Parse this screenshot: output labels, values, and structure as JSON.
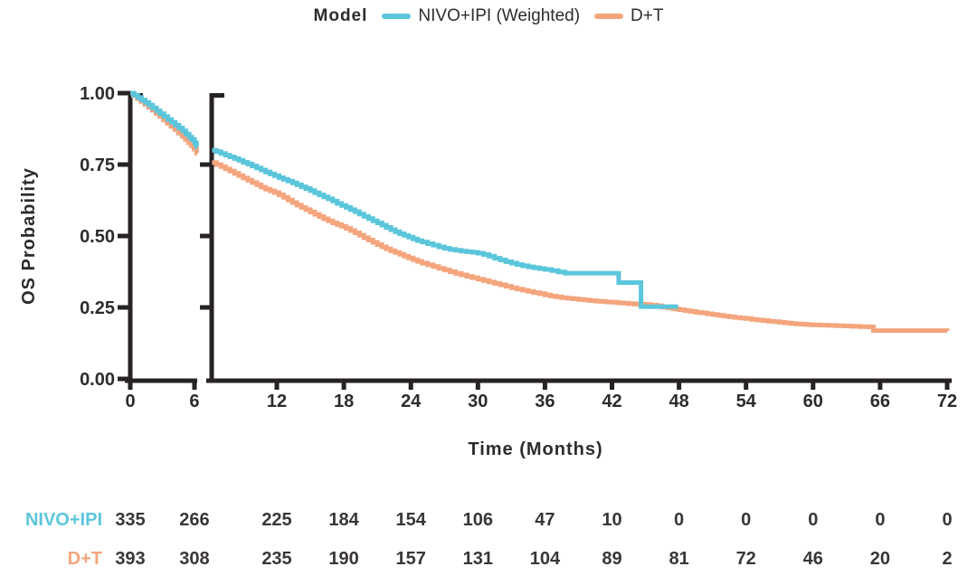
{
  "legend": {
    "title": "Model",
    "items": [
      {
        "label": "NIVO+IPI (Weighted)",
        "color": "#5bc6db"
      },
      {
        "label": "D+T",
        "color": "#f4a57d"
      }
    ]
  },
  "axes": {
    "y_title": "OS Probability",
    "x_title": "Time (Months)",
    "y_ticks": [
      {
        "label": "1.00",
        "value": 1.0
      },
      {
        "label": "0.75",
        "value": 0.75
      },
      {
        "label": "0.50",
        "value": 0.5
      },
      {
        "label": "0.25",
        "value": 0.25
      },
      {
        "label": "0.00",
        "value": 0.0
      }
    ],
    "y_break_ticks": [
      0.75,
      0.5,
      0.25
    ],
    "x_ticks_panel1": [
      {
        "label": "0",
        "value": 0
      },
      {
        "label": "6",
        "value": 6
      }
    ],
    "x_ticks_panel2": [
      {
        "label": "12",
        "value": 12
      },
      {
        "label": "18",
        "value": 18
      },
      {
        "label": "24",
        "value": 24
      },
      {
        "label": "30",
        "value": 30
      },
      {
        "label": "36",
        "value": 36
      },
      {
        "label": "42",
        "value": 42
      },
      {
        "label": "48",
        "value": 48
      },
      {
        "label": "54",
        "value": 54
      },
      {
        "label": "60",
        "value": 60
      },
      {
        "label": "66",
        "value": 66
      },
      {
        "label": "72",
        "value": 72
      }
    ]
  },
  "chart_data": {
    "type": "line",
    "subtype": "kaplan-meier-step",
    "title": "",
    "xlabel": "Time (Months)",
    "ylabel": "OS Probability",
    "xlim": [
      0,
      72
    ],
    "ylim": [
      0.0,
      1.0
    ],
    "grid": false,
    "legend_position": "top",
    "x_axis_break": {
      "panel1_domain": [
        0,
        6.25
      ],
      "panel2_domain": [
        6.2,
        72
      ]
    },
    "series": [
      {
        "name": "D+T",
        "color": "#f4a57d",
        "end_month": 72,
        "panel1": [
          [
            0,
            1.0
          ],
          [
            0.3,
            0.991
          ],
          [
            0.65,
            0.981
          ],
          [
            1.0,
            0.971
          ],
          [
            1.35,
            0.961
          ],
          [
            1.7,
            0.951
          ],
          [
            2.05,
            0.94
          ],
          [
            2.4,
            0.929
          ],
          [
            2.75,
            0.918
          ],
          [
            3.1,
            0.906
          ],
          [
            3.45,
            0.895
          ],
          [
            3.8,
            0.884
          ],
          [
            4.15,
            0.872
          ],
          [
            4.5,
            0.86
          ],
          [
            4.85,
            0.848
          ],
          [
            5.15,
            0.838
          ],
          [
            5.45,
            0.826
          ],
          [
            5.7,
            0.816
          ],
          [
            5.95,
            0.804
          ],
          [
            6.2,
            0.79
          ]
        ],
        "panel2": [
          [
            6.2,
            0.757
          ],
          [
            6.6,
            0.75
          ],
          [
            7,
            0.743
          ],
          [
            7.4,
            0.735
          ],
          [
            7.8,
            0.727
          ],
          [
            8.2,
            0.719
          ],
          [
            8.6,
            0.711
          ],
          [
            9,
            0.703
          ],
          [
            9.4,
            0.695
          ],
          [
            9.8,
            0.687
          ],
          [
            10.2,
            0.679
          ],
          [
            10.6,
            0.671
          ],
          [
            11,
            0.664
          ],
          [
            11.4,
            0.658
          ],
          [
            11.8,
            0.652
          ],
          [
            12.2,
            0.644
          ],
          [
            12.6,
            0.635
          ],
          [
            13,
            0.626
          ],
          [
            13.4,
            0.617
          ],
          [
            13.8,
            0.608
          ],
          [
            14.2,
            0.6
          ],
          [
            14.6,
            0.592
          ],
          [
            15,
            0.584
          ],
          [
            15.4,
            0.576
          ],
          [
            15.8,
            0.568
          ],
          [
            16.2,
            0.56
          ],
          [
            16.6,
            0.553
          ],
          [
            17,
            0.546
          ],
          [
            17.4,
            0.54
          ],
          [
            17.8,
            0.534
          ],
          [
            18.2,
            0.527
          ],
          [
            18.6,
            0.519
          ],
          [
            19,
            0.511
          ],
          [
            19.4,
            0.503
          ],
          [
            19.8,
            0.494
          ],
          [
            20.2,
            0.486
          ],
          [
            20.6,
            0.478
          ],
          [
            21,
            0.47
          ],
          [
            21.4,
            0.462
          ],
          [
            21.8,
            0.455
          ],
          [
            22.2,
            0.448
          ],
          [
            22.6,
            0.442
          ],
          [
            23,
            0.436
          ],
          [
            23.4,
            0.429
          ],
          [
            23.8,
            0.423
          ],
          [
            24.2,
            0.417
          ],
          [
            24.6,
            0.411
          ],
          [
            25,
            0.405
          ],
          [
            25.5,
            0.399
          ],
          [
            26,
            0.393
          ],
          [
            26.5,
            0.387
          ],
          [
            27,
            0.381
          ],
          [
            27.5,
            0.375
          ],
          [
            28,
            0.369
          ],
          [
            28.5,
            0.364
          ],
          [
            29,
            0.359
          ],
          [
            29.5,
            0.354
          ],
          [
            30,
            0.349
          ],
          [
            30.5,
            0.344
          ],
          [
            31,
            0.339
          ],
          [
            31.5,
            0.334
          ],
          [
            32,
            0.329
          ],
          [
            32.5,
            0.324
          ],
          [
            33,
            0.319
          ],
          [
            33.5,
            0.314
          ],
          [
            34,
            0.31
          ],
          [
            34.5,
            0.306
          ],
          [
            35,
            0.302
          ],
          [
            35.5,
            0.298
          ],
          [
            36,
            0.294
          ],
          [
            36.5,
            0.29
          ],
          [
            37,
            0.287
          ],
          [
            37.5,
            0.284
          ],
          [
            38,
            0.282
          ],
          [
            38.5,
            0.28
          ],
          [
            39,
            0.278
          ],
          [
            39.5,
            0.276
          ],
          [
            40,
            0.274
          ],
          [
            40.5,
            0.272
          ],
          [
            41,
            0.271
          ],
          [
            41.5,
            0.269
          ],
          [
            42,
            0.268
          ],
          [
            42.5,
            0.266
          ],
          [
            43,
            0.265
          ],
          [
            43.5,
            0.263
          ],
          [
            44,
            0.262
          ],
          [
            44.5,
            0.261
          ],
          [
            45,
            0.26
          ],
          [
            45.5,
            0.258
          ],
          [
            46,
            0.256
          ],
          [
            46.5,
            0.251
          ],
          [
            47,
            0.248
          ],
          [
            47.5,
            0.245
          ],
          [
            48,
            0.242
          ],
          [
            48.5,
            0.239
          ],
          [
            49,
            0.236
          ],
          [
            49.5,
            0.233
          ],
          [
            50,
            0.231
          ],
          [
            50.5,
            0.228
          ],
          [
            51,
            0.225
          ],
          [
            51.5,
            0.222
          ],
          [
            52,
            0.22
          ],
          [
            52.5,
            0.217
          ],
          [
            53,
            0.215
          ],
          [
            53.5,
            0.213
          ],
          [
            54,
            0.211
          ],
          [
            54.5,
            0.208
          ],
          [
            55,
            0.206
          ],
          [
            55.5,
            0.204
          ],
          [
            56,
            0.202
          ],
          [
            56.5,
            0.2
          ],
          [
            57,
            0.198
          ],
          [
            57.5,
            0.196
          ],
          [
            58,
            0.194
          ],
          [
            58.5,
            0.192
          ],
          [
            59,
            0.191
          ],
          [
            59.5,
            0.19
          ],
          [
            60,
            0.189
          ],
          [
            60.7,
            0.188
          ],
          [
            61.4,
            0.187
          ],
          [
            62.1,
            0.186
          ],
          [
            62.8,
            0.185
          ],
          [
            63.5,
            0.184
          ],
          [
            64.2,
            0.183
          ],
          [
            65,
            0.182
          ],
          [
            65.4,
            0.169
          ],
          [
            72,
            0.168
          ]
        ]
      },
      {
        "name": "NIVO+IPI (Weighted)",
        "color": "#5bc6db",
        "end_month": 47.9,
        "panel1": [
          [
            0,
            1.0
          ],
          [
            0.35,
            0.993
          ],
          [
            0.7,
            0.985
          ],
          [
            1.05,
            0.976
          ],
          [
            1.4,
            0.967
          ],
          [
            1.75,
            0.958
          ],
          [
            2.1,
            0.948
          ],
          [
            2.45,
            0.938
          ],
          [
            2.8,
            0.928
          ],
          [
            3.15,
            0.918
          ],
          [
            3.5,
            0.908
          ],
          [
            3.85,
            0.898
          ],
          [
            4.2,
            0.888
          ],
          [
            4.55,
            0.878
          ],
          [
            4.9,
            0.868
          ],
          [
            5.2,
            0.857
          ],
          [
            5.5,
            0.846
          ],
          [
            5.75,
            0.838
          ],
          [
            6.0,
            0.826
          ],
          [
            6.2,
            0.812
          ]
        ],
        "panel2": [
          [
            6.2,
            0.8
          ],
          [
            6.6,
            0.795
          ],
          [
            7,
            0.789
          ],
          [
            7.4,
            0.783
          ],
          [
            7.8,
            0.777
          ],
          [
            8.2,
            0.771
          ],
          [
            8.6,
            0.765
          ],
          [
            9,
            0.758
          ],
          [
            9.4,
            0.752
          ],
          [
            9.8,
            0.745
          ],
          [
            10.2,
            0.738
          ],
          [
            10.6,
            0.731
          ],
          [
            11,
            0.724
          ],
          [
            11.4,
            0.717
          ],
          [
            11.8,
            0.711
          ],
          [
            12.2,
            0.704
          ],
          [
            12.6,
            0.698
          ],
          [
            13,
            0.692
          ],
          [
            13.4,
            0.686
          ],
          [
            13.8,
            0.679
          ],
          [
            14.2,
            0.672
          ],
          [
            14.6,
            0.666
          ],
          [
            15,
            0.659
          ],
          [
            15.4,
            0.651
          ],
          [
            15.8,
            0.644
          ],
          [
            16.2,
            0.637
          ],
          [
            16.6,
            0.63
          ],
          [
            17,
            0.622
          ],
          [
            17.4,
            0.614
          ],
          [
            17.8,
            0.607
          ],
          [
            18.2,
            0.6
          ],
          [
            18.6,
            0.592
          ],
          [
            19,
            0.585
          ],
          [
            19.4,
            0.577
          ],
          [
            19.8,
            0.569
          ],
          [
            20.2,
            0.561
          ],
          [
            20.6,
            0.553
          ],
          [
            21,
            0.546
          ],
          [
            21.4,
            0.538
          ],
          [
            21.8,
            0.53
          ],
          [
            22.2,
            0.522
          ],
          [
            22.6,
            0.515
          ],
          [
            23,
            0.508
          ],
          [
            23.4,
            0.502
          ],
          [
            23.8,
            0.496
          ],
          [
            24.2,
            0.49
          ],
          [
            24.6,
            0.484
          ],
          [
            25,
            0.479
          ],
          [
            25.5,
            0.473
          ],
          [
            26,
            0.468
          ],
          [
            26.5,
            0.462
          ],
          [
            27,
            0.457
          ],
          [
            27.5,
            0.453
          ],
          [
            28,
            0.45
          ],
          [
            28.5,
            0.447
          ],
          [
            29,
            0.445
          ],
          [
            29.5,
            0.443
          ],
          [
            30,
            0.44
          ],
          [
            30.5,
            0.435
          ],
          [
            31,
            0.429
          ],
          [
            31.5,
            0.422
          ],
          [
            32,
            0.416
          ],
          [
            32.5,
            0.41
          ],
          [
            33,
            0.405
          ],
          [
            33.5,
            0.4
          ],
          [
            34,
            0.396
          ],
          [
            34.5,
            0.392
          ],
          [
            35,
            0.389
          ],
          [
            35.5,
            0.386
          ],
          [
            36,
            0.383
          ],
          [
            36.6,
            0.379
          ],
          [
            37.2,
            0.374
          ],
          [
            37.8,
            0.37
          ],
          [
            42.6,
            0.337
          ],
          [
            44.6,
            0.253
          ],
          [
            47.9,
            0.253
          ]
        ]
      }
    ]
  },
  "risk_table": {
    "time_points": [
      0,
      6,
      12,
      18,
      24,
      30,
      36,
      42,
      48,
      54,
      60,
      66,
      72
    ],
    "rows": [
      {
        "label": "NIVO+IPI",
        "color": "#5bc6db",
        "counts": [
          "335",
          "266",
          "225",
          "184",
          "154",
          "106",
          "47",
          "10",
          "0",
          "0",
          "0",
          "0",
          "0"
        ]
      },
      {
        "label": "D+T",
        "color": "#f4a57d",
        "counts": [
          "393",
          "308",
          "235",
          "190",
          "157",
          "131",
          "104",
          "89",
          "81",
          "72",
          "46",
          "20",
          "2"
        ]
      }
    ]
  }
}
